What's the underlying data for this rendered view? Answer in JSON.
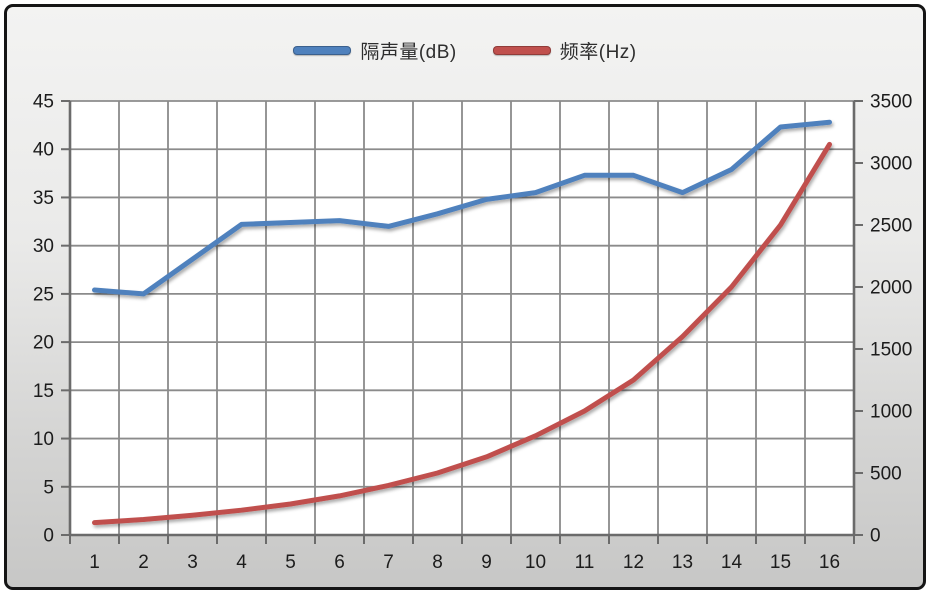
{
  "legend": {
    "items": [
      {
        "label": "隔声量(dB)",
        "color": "#4F81BD"
      },
      {
        "label": "频率(Hz)",
        "color": "#C0504D"
      }
    ]
  },
  "chart_data": {
    "type": "line",
    "title": "",
    "xlabel": "",
    "ylabel_left": "",
    "ylabel_right": "",
    "grid": true,
    "legend_position": "top",
    "categories": [
      1,
      2,
      3,
      4,
      5,
      6,
      7,
      8,
      9,
      10,
      11,
      12,
      13,
      14,
      15,
      16
    ],
    "series": [
      {
        "name": "隔声量(dB)",
        "axis": "left",
        "color": "#4F81BD",
        "values": [
          25.4,
          25.0,
          28.6,
          32.2,
          32.4,
          32.6,
          32.0,
          33.3,
          34.8,
          35.5,
          37.3,
          37.3,
          35.5,
          37.9,
          42.3,
          42.8
        ]
      },
      {
        "name": "频率(Hz)",
        "axis": "right",
        "color": "#C0504D",
        "values": [
          100,
          125,
          160,
          200,
          250,
          315,
          400,
          500,
          630,
          800,
          1000,
          1250,
          1600,
          2000,
          2500,
          3150
        ]
      }
    ],
    "axes": {
      "left": {
        "min": 0,
        "max": 45,
        "step": 5,
        "ticks": [
          0,
          5,
          10,
          15,
          20,
          25,
          30,
          35,
          40,
          45
        ]
      },
      "right": {
        "min": 0,
        "max": 3500,
        "step": 500,
        "ticks": [
          0,
          500,
          1000,
          1500,
          2000,
          2500,
          3000,
          3500
        ]
      },
      "x": {
        "ticks": [
          "1",
          "2",
          "3",
          "4",
          "5",
          "6",
          "7",
          "8",
          "9",
          "10",
          "11",
          "12",
          "13",
          "14",
          "15",
          "16"
        ]
      }
    }
  },
  "style": {
    "plot_bg": "#ffffff",
    "grid_color": "#8b8b8b",
    "axis_color": "#6b6b6b",
    "label_color": "#1c1c1c",
    "frame_border": "#151515"
  }
}
